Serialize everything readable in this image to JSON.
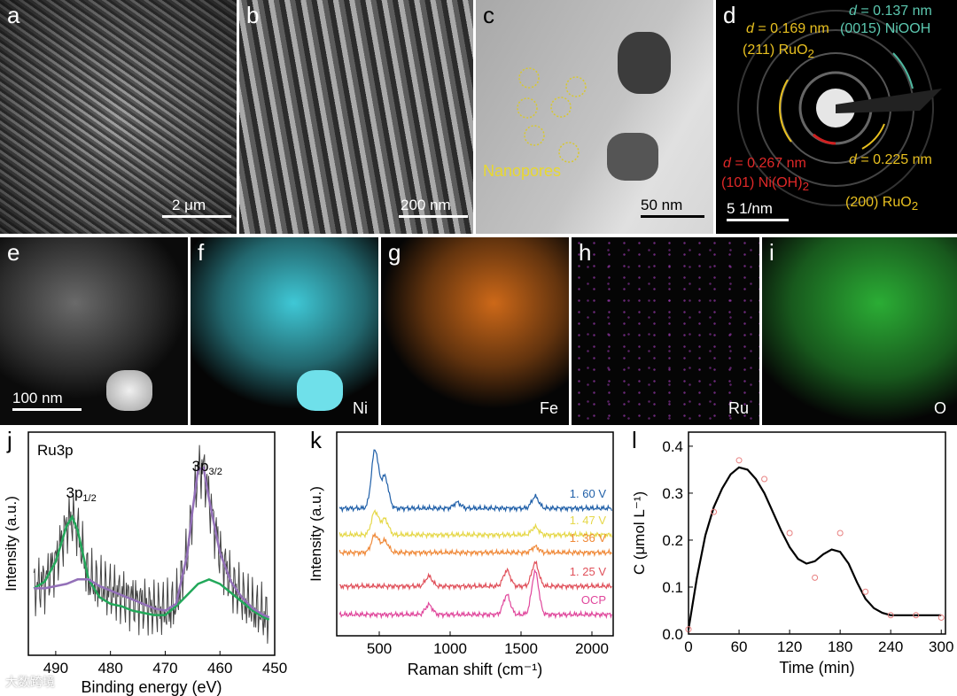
{
  "panels": {
    "a": {
      "letter": "a",
      "scale": "2 μm"
    },
    "b": {
      "letter": "b",
      "scale": "200 nm"
    },
    "c": {
      "letter": "c",
      "scale": "50 nm",
      "annotation": "Nanopores"
    },
    "d": {
      "letter": "d",
      "scale": "5 1/nm",
      "annotations": {
        "niooh_d": "= 0.137 nm",
        "niooh_plane": "(0015) NiOOH",
        "ruo2_211_d": "= 0.169 nm",
        "ruo2_211_plane": "(211) RuO",
        "nioh_d": "= 0.267 nm",
        "nioh_plane": "(101) Ni(OH)",
        "ruo2_200_d": "= 0.225 nm",
        "ruo2_200_plane": "(200) RuO",
        "d_symbol": "d",
        "sub2": "2"
      }
    },
    "e": {
      "letter": "e",
      "scale": "100 nm"
    },
    "f": {
      "letter": "f",
      "element": "Ni",
      "color": "#3fc8d6"
    },
    "g": {
      "letter": "g",
      "element": "Fe",
      "color": "#f07a1c"
    },
    "h": {
      "letter": "h",
      "element": "Ru",
      "color": "#b040c8"
    },
    "i": {
      "letter": "i",
      "element": "O",
      "color": "#2fbf3a"
    },
    "j": {
      "letter": "j"
    },
    "k": {
      "letter": "k"
    },
    "l": {
      "letter": "l"
    }
  },
  "watermark": "大数跨境",
  "chart_data": [
    {
      "type": "line",
      "id": "j",
      "title": "Ru3p",
      "xlabel": "Binding energy (eV)",
      "ylabel": "Intensity (a.u.)",
      "xlim": [
        495,
        450
      ],
      "x_ticks": [
        490,
        480,
        470,
        460,
        450
      ],
      "peak_labels": [
        {
          "text": "3p",
          "sub": "1/2",
          "x": 486.5
        },
        {
          "text": "3p",
          "sub": "3/2",
          "x": 463.5
        }
      ],
      "series": [
        {
          "id": "fit_3p12",
          "color": "#22a85a",
          "x": [
            494,
            492,
            490,
            488,
            487,
            486,
            484,
            482,
            480,
            478,
            476,
            474,
            472,
            470,
            468,
            466,
            464,
            462,
            460,
            458,
            456,
            454,
            452,
            451
          ],
          "y": [
            0.3,
            0.33,
            0.42,
            0.58,
            0.62,
            0.56,
            0.34,
            0.26,
            0.23,
            0.22,
            0.2,
            0.19,
            0.18,
            0.18,
            0.22,
            0.27,
            0.32,
            0.34,
            0.32,
            0.28,
            0.24,
            0.2,
            0.17,
            0.16
          ]
        },
        {
          "id": "fit_3p32",
          "color": "#9370b8",
          "x": [
            494,
            492,
            490,
            488,
            486,
            484,
            482,
            480,
            478,
            476,
            474,
            472,
            470,
            468,
            466,
            465,
            464,
            463,
            462,
            460,
            458,
            456,
            454,
            452,
            451
          ],
          "y": [
            0.3,
            0.3,
            0.31,
            0.32,
            0.34,
            0.34,
            0.31,
            0.29,
            0.27,
            0.25,
            0.23,
            0.21,
            0.2,
            0.23,
            0.45,
            0.65,
            0.83,
            0.84,
            0.7,
            0.46,
            0.33,
            0.26,
            0.21,
            0.18,
            0.17
          ]
        }
      ]
    },
    {
      "type": "line",
      "id": "k",
      "xlabel": "Raman shift (cm⁻¹)",
      "ylabel": "Intensity (a.u.)",
      "xlim": [
        200,
        2150
      ],
      "x_ticks": [
        500,
        1000,
        1500,
        2000
      ],
      "series": [
        {
          "name": "1. 60 V",
          "color": "#1f5fa8",
          "offset": 4
        },
        {
          "name": "1. 47 V",
          "color": "#e6d84a",
          "offset": 3
        },
        {
          "name": "1. 36 V",
          "color": "#f08a3a",
          "offset": 2
        },
        {
          "name": "1. 25 V",
          "color": "#e0505a",
          "offset": 1
        },
        {
          "name": "OCP",
          "color": "#e0479c",
          "offset": 0
        }
      ]
    },
    {
      "type": "line",
      "id": "l",
      "xlabel": "Time (min)",
      "ylabel": "C (μmol L⁻¹)",
      "xlim": [
        0,
        305
      ],
      "ylim": [
        0,
        0.43
      ],
      "x_ticks": [
        0,
        60,
        120,
        180,
        240,
        300
      ],
      "y_ticks": [
        0.0,
        0.1,
        0.2,
        0.3,
        0.4
      ],
      "points": {
        "x": [
          0,
          30,
          60,
          90,
          120,
          150,
          180,
          210,
          240,
          270,
          300
        ],
        "y": [
          0.01,
          0.26,
          0.37,
          0.33,
          0.215,
          0.12,
          0.215,
          0.09,
          0.04,
          0.04,
          0.035
        ]
      },
      "curve": {
        "x": [
          0,
          10,
          20,
          30,
          40,
          50,
          60,
          70,
          80,
          90,
          100,
          110,
          120,
          130,
          140,
          150,
          160,
          170,
          180,
          190,
          200,
          210,
          220,
          230,
          240,
          250,
          270,
          300
        ],
        "y": [
          0.01,
          0.12,
          0.21,
          0.27,
          0.31,
          0.34,
          0.355,
          0.35,
          0.33,
          0.3,
          0.26,
          0.22,
          0.185,
          0.16,
          0.15,
          0.155,
          0.17,
          0.18,
          0.175,
          0.15,
          0.11,
          0.075,
          0.055,
          0.045,
          0.04,
          0.04,
          0.04,
          0.04
        ]
      }
    }
  ]
}
